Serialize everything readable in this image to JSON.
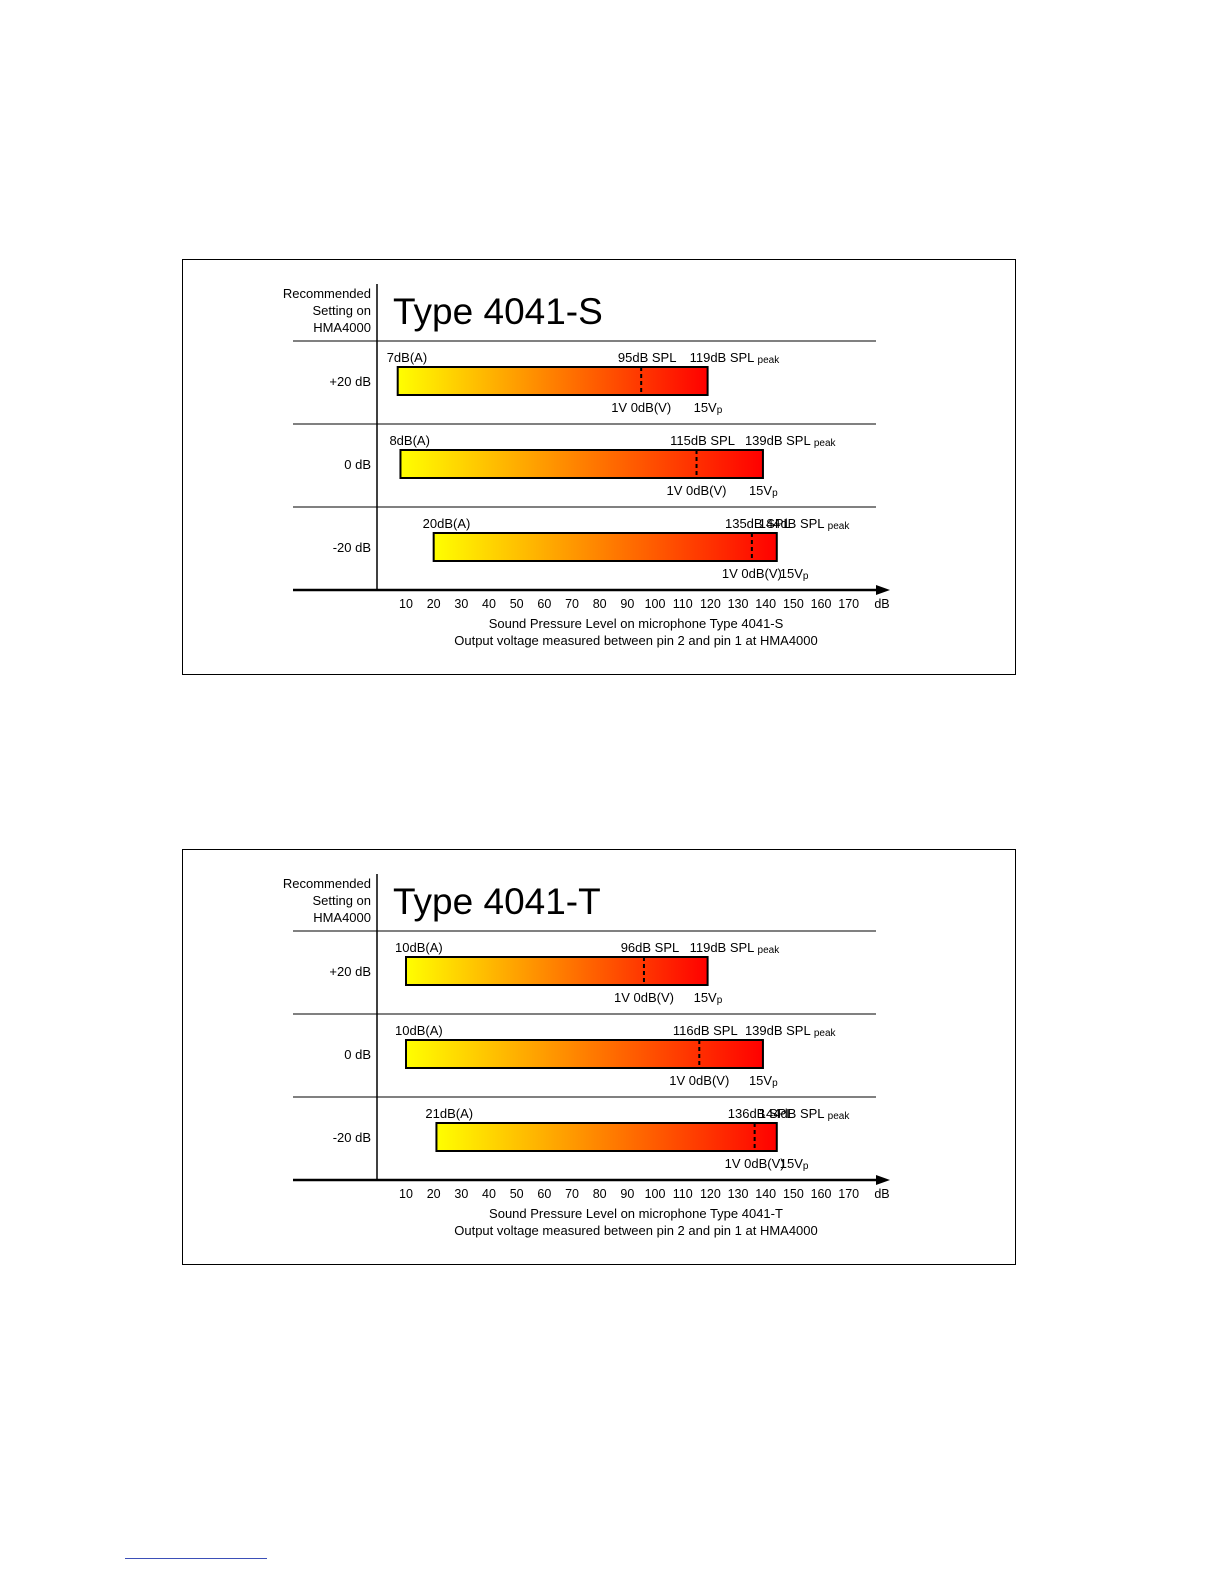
{
  "colors": {
    "bar_start": "#ffff00",
    "bar_end": "#ff0000",
    "outline": "#000000"
  },
  "chart_data": [
    {
      "type": "bar",
      "title": "Type 4041-S",
      "header_label": [
        "Recommended",
        "Setting on",
        "HMA4000"
      ],
      "x_ticks": [
        10,
        20,
        30,
        40,
        50,
        60,
        70,
        80,
        90,
        100,
        110,
        120,
        130,
        140,
        150,
        160,
        170
      ],
      "x_unit": "dB",
      "xlabel": "Sound Pressure Level on microphone Type 4041-S",
      "xlabel2": "Output voltage measured between pin 2 and pin 1 at HMA4000",
      "rows": [
        {
          "setting": "+20 dB",
          "start": 7,
          "zero_db_v": 95,
          "end": 119,
          "start_label": "7dB(A)",
          "mid_label": "95dB SPL",
          "end_label": "119dB SPL",
          "peak_sub": "peak",
          "v_label": "1V 0dB(V)",
          "vp_label": "15V",
          "vp_sub": "p"
        },
        {
          "setting": "0 dB",
          "start": 8,
          "zero_db_v": 115,
          "end": 139,
          "start_label": "8dB(A)",
          "mid_label": "115dB SPL",
          "end_label": "139dB SPL",
          "peak_sub": "peak",
          "v_label": "1V 0dB(V)",
          "vp_label": "15V",
          "vp_sub": "p"
        },
        {
          "setting": "-20 dB",
          "start": 20,
          "zero_db_v": 135,
          "end": 144,
          "start_label": "20dB(A)",
          "mid_label": "135dB SPL",
          "end_label": "144dB SPL",
          "peak_sub": "peak",
          "v_label": "1V 0dB(V)",
          "vp_label": "15V",
          "vp_sub": "p"
        }
      ]
    },
    {
      "type": "bar",
      "title": "Type 4041-T",
      "header_label": [
        "Recommended",
        "Setting on",
        "HMA4000"
      ],
      "x_ticks": [
        10,
        20,
        30,
        40,
        50,
        60,
        70,
        80,
        90,
        100,
        110,
        120,
        130,
        140,
        150,
        160,
        170
      ],
      "x_unit": "dB",
      "xlabel": "Sound Pressure Level on microphone Type 4041-T",
      "xlabel2": "Output voltage measured between pin 2 and pin 1 at HMA4000",
      "rows": [
        {
          "setting": "+20 dB",
          "start": 10,
          "zero_db_v": 96,
          "end": 119,
          "start_label": "10dB(A)",
          "mid_label": "96dB SPL",
          "end_label": "119dB SPL",
          "peak_sub": "peak",
          "v_label": "1V 0dB(V)",
          "vp_label": "15V",
          "vp_sub": "p"
        },
        {
          "setting": "0 dB",
          "start": 10,
          "zero_db_v": 116,
          "end": 139,
          "start_label": "10dB(A)",
          "mid_label": "116dB SPL",
          "end_label": "139dB SPL",
          "peak_sub": "peak",
          "v_label": "1V 0dB(V)",
          "vp_label": "15V",
          "vp_sub": "p"
        },
        {
          "setting": "-20 dB",
          "start": 21,
          "zero_db_v": 136,
          "end": 144,
          "start_label": "21dB(A)",
          "mid_label": "136dB SPL",
          "end_label": "144dB SPL",
          "peak_sub": "peak",
          "v_label": "1V 0dB(V)",
          "vp_label": "15V",
          "vp_sub": "p"
        }
      ]
    }
  ]
}
